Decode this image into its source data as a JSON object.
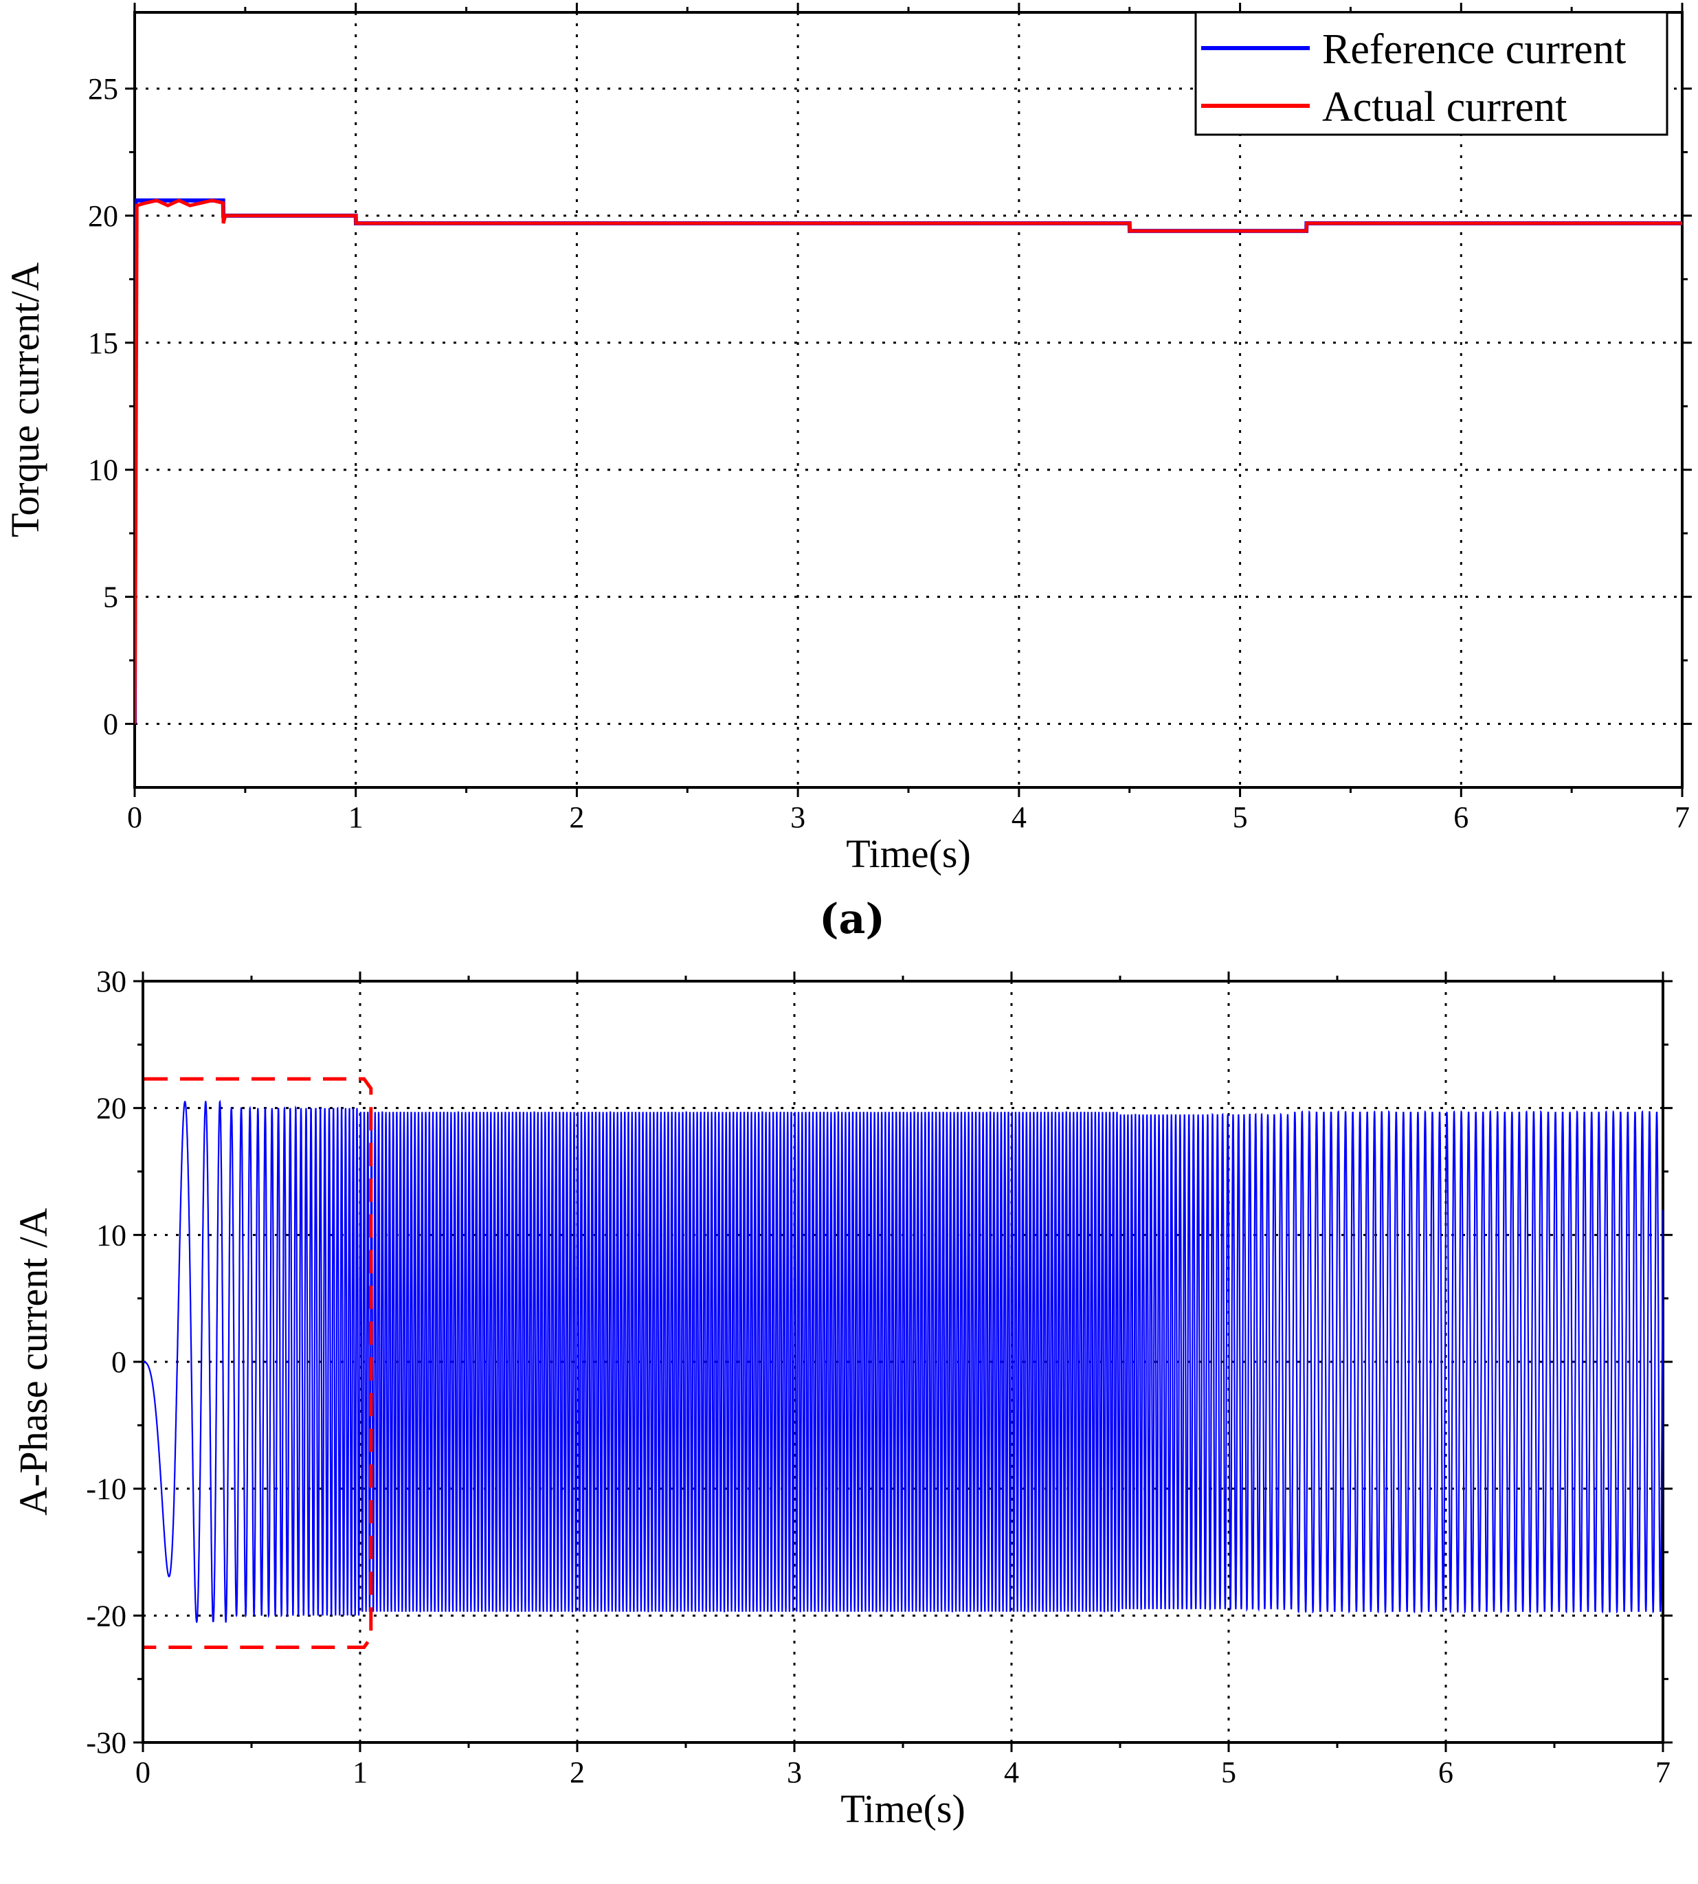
{
  "panel_a_label": "(a)",
  "chart_data": [
    {
      "type": "line",
      "xlabel": "Time(s)",
      "ylabel": "Torque current/A",
      "xlim": [
        0,
        7
      ],
      "ylim": [
        -2.5,
        28
      ],
      "x_ticks": [
        0,
        1,
        2,
        3,
        4,
        5,
        6,
        7
      ],
      "y_ticks": [
        0,
        5,
        10,
        15,
        20,
        25
      ],
      "grid": true,
      "legend": "top-right",
      "colors": {
        "reference": "#0000ff",
        "actual": "#ff0000"
      },
      "series": [
        {
          "name": "Reference current",
          "x": [
            0,
            0.005,
            0.01,
            0.4,
            0.401,
            1.0,
            1.001,
            4.5,
            4.501,
            5.3,
            5.301,
            7
          ],
          "y": [
            0,
            20.6,
            20.6,
            20.6,
            20.0,
            20.0,
            19.7,
            19.7,
            19.4,
            19.4,
            19.7,
            19.7
          ]
        },
        {
          "name": "Actual current",
          "x": [
            0,
            0.005,
            0.01,
            0.05,
            0.1,
            0.15,
            0.2,
            0.25,
            0.3,
            0.35,
            0.4,
            0.401,
            0.41,
            1.0,
            1.001,
            4.5,
            4.501,
            5.3,
            5.301,
            7
          ],
          "y": [
            0,
            8,
            20.4,
            20.5,
            20.6,
            20.4,
            20.6,
            20.4,
            20.5,
            20.6,
            20.5,
            19.7,
            20.0,
            20.0,
            19.7,
            19.7,
            19.4,
            19.4,
            19.7,
            19.7
          ]
        }
      ]
    },
    {
      "type": "line",
      "xlabel": "Time(s)",
      "ylabel": "A-Phase current /A",
      "xlim": [
        0,
        7
      ],
      "ylim": [
        -30,
        30
      ],
      "x_ticks": [
        0,
        1,
        2,
        3,
        4,
        5,
        6,
        7
      ],
      "y_ticks": [
        -30,
        -20,
        -10,
        0,
        10,
        20,
        30
      ],
      "grid": true,
      "colors": {
        "signal": "#0000ff",
        "highlight_box": "#ff0000"
      },
      "series": [
        {
          "name": "",
          "description_values": {
            "amplitude_segments": [
              {
                "t_start": 0,
                "t_end": 0.4,
                "amplitude": 20.5
              },
              {
                "t_start": 0.4,
                "t_end": 1.0,
                "amplitude": 20.0
              },
              {
                "t_start": 1.0,
                "t_end": 4.5,
                "amplitude": 19.7
              },
              {
                "t_start": 4.5,
                "t_end": 5.3,
                "amplitude": 19.5
              },
              {
                "t_start": 5.3,
                "t_end": 7.0,
                "amplitude": 19.7
              }
            ],
            "frequency_profile_hz": [
              {
                "t": 0,
                "f": 0
              },
              {
                "t": 0.1,
                "f": 4
              },
              {
                "t": 0.2,
                "f": 8
              },
              {
                "t": 0.4,
                "f": 20
              },
              {
                "t": 1.0,
                "f": 60
              },
              {
                "t": 4.5,
                "f": 60
              },
              {
                "t": 5.3,
                "f": 30
              },
              {
                "t": 7.0,
                "f": 30
              }
            ]
          }
        }
      ],
      "highlight_box": {
        "x": [
          0,
          1.05
        ],
        "y": [
          -22.5,
          22.3
        ]
      }
    }
  ]
}
